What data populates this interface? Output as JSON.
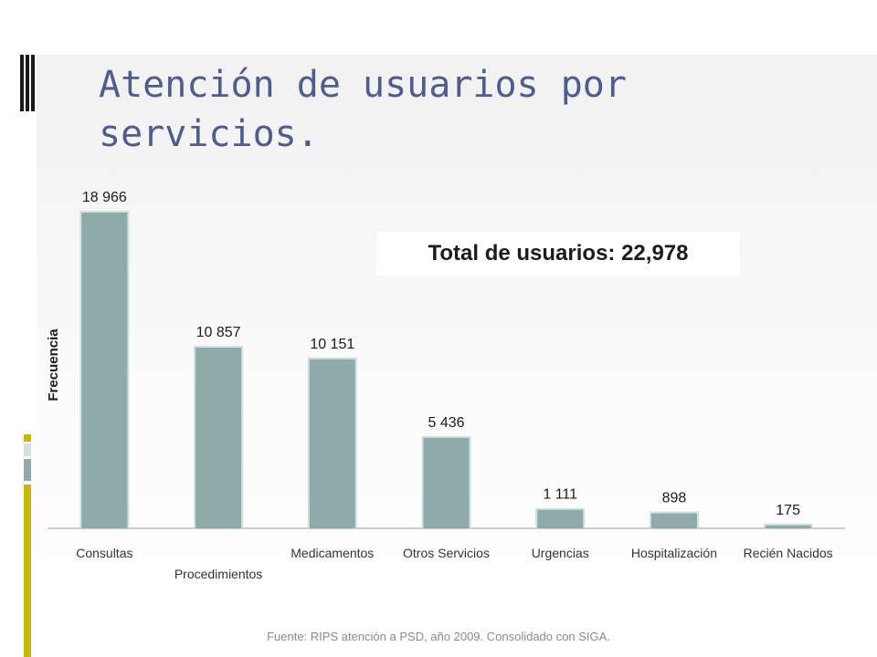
{
  "title": "Atención de usuarios por servicios.",
  "total_label": "Total de usuarios: 22,978",
  "source": "Fuente: RIPS atención a PSD, año 2009. Consolidado con SIGA.",
  "colors": {
    "bar_fill": "#8eaaa9",
    "bar_glow": "#cfe0e0",
    "title": "#4e5e8c",
    "accent_yellow": "#c9b800"
  },
  "chart_data": {
    "type": "bar",
    "title": "",
    "xlabel": "",
    "ylabel": "Frecuencia",
    "ylim": [
      0,
      20000
    ],
    "grid": false,
    "categories": [
      "Consultas",
      "Procedimientos",
      "Medicamentos",
      "Otros Servicios",
      "Urgencias",
      "Hospitalización",
      "Recién Nacidos"
    ],
    "values": [
      18966,
      10857,
      10151,
      5436,
      1111,
      898,
      175
    ],
    "value_labels": [
      "18 966",
      "10 857",
      "10 151",
      "5 436",
      "1 111",
      "898",
      "175"
    ]
  }
}
